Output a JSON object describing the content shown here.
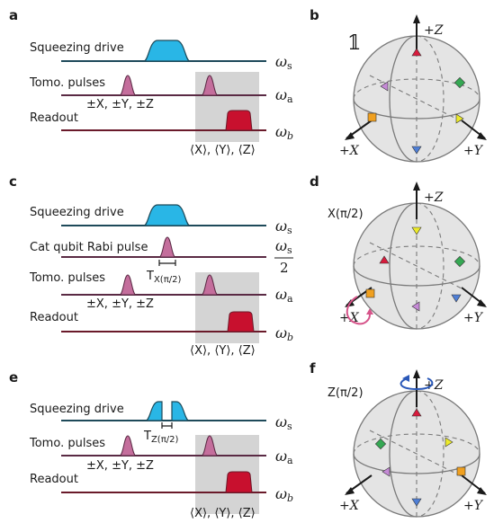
{
  "colors": {
    "drive": "#29b6e6",
    "drive_line": "#1e4a5a",
    "pulse": "#c46e9c",
    "pulse_line": "#5a2a44",
    "readout": "#c8102e",
    "readout_line": "#6a1a2a",
    "window": "#d4d4d4",
    "sphere": "#e4e4e4",
    "marker_red": "#d81b3c",
    "marker_yellow": "#ecea2a",
    "marker_green": "#35a853",
    "marker_blue": "#4f7fd6",
    "marker_purple": "#c58ad6",
    "marker_orange": "#f0a020",
    "rot_pink": "#d6548a",
    "rot_blue": "#2a58b8"
  },
  "panels": {
    "a": {
      "letter": "a",
      "squeeze_label": "Squeezing drive",
      "tomo_label": "Tomo. pulses",
      "tomo_ops": "±X, ±Y, ±Z",
      "readout_label": "Readout",
      "freq_s": "ω",
      "freq_s_sub": "s",
      "freq_a": "ω",
      "freq_a_sub": "a",
      "freq_b": "ω",
      "freq_b_sub": "b",
      "measure": "⟨X⟩, ⟨Y⟩, ⟨Z⟩"
    },
    "b": {
      "letter": "b",
      "op": "𝟙",
      "axis_z": "+Z",
      "axis_x": "+X",
      "axis_y": "+Y"
    },
    "c": {
      "letter": "c",
      "squeeze_label": "Squeezing drive",
      "rabi_label": "Cat qubit Rabi pulse",
      "rabi_time": "T",
      "rabi_time_sub": "X(π/2)",
      "tomo_label": "Tomo. pulses",
      "tomo_ops": "±X, ±Y, ±Z",
      "readout_label": "Readout",
      "freq_s": "ω",
      "freq_s_sub": "s",
      "freq_half_num": "ω",
      "freq_half_sub": "s",
      "freq_half_den": "2",
      "freq_a": "ω",
      "freq_a_sub": "a",
      "freq_b": "ω",
      "freq_b_sub": "b",
      "measure": "⟨X⟩, ⟨Y⟩, ⟨Z⟩"
    },
    "d": {
      "letter": "d",
      "op": "X(π/2)",
      "axis_z": "+Z",
      "axis_x": "+X",
      "axis_y": "+Y"
    },
    "e": {
      "letter": "e",
      "squeeze_label": "Squeezing drive",
      "gap_time": "T",
      "gap_time_sub": "Z(π/2)",
      "tomo_label": "Tomo. pulses",
      "tomo_ops": "±X, ±Y, ±Z",
      "readout_label": "Readout",
      "freq_s": "ω",
      "freq_s_sub": "s",
      "freq_a": "ω",
      "freq_a_sub": "a",
      "freq_b": "ω",
      "freq_b_sub": "b",
      "measure": "⟨X⟩, ⟨Y⟩, ⟨Z⟩"
    },
    "f": {
      "letter": "f",
      "op": "Z(π/2)",
      "axis_z": "+Z",
      "axis_x": "+X",
      "axis_y": "+Y"
    }
  }
}
